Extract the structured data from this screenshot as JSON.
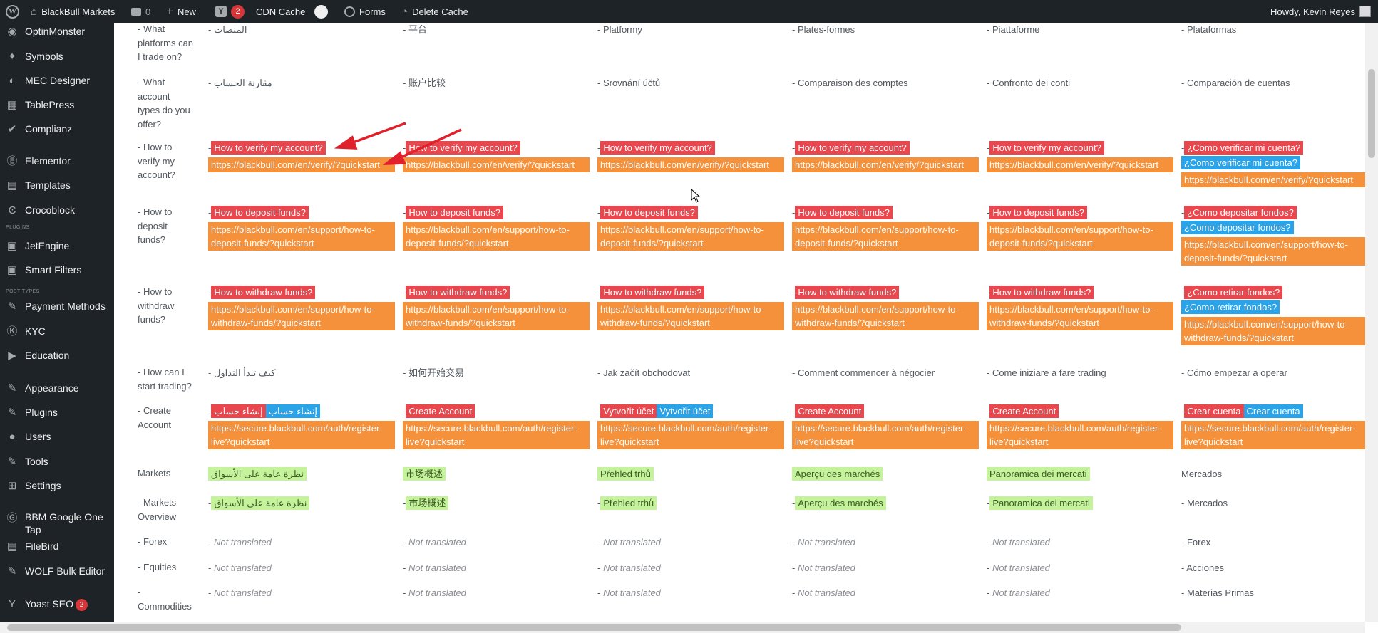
{
  "colors": {
    "admin_bar": "#1d2327",
    "sidebar": "#1d2327",
    "lang_highlight": "#e8474e",
    "url_highlight": "#f5913b",
    "alt_highlight": "#2ba3e8",
    "menu_highlight": "#c5f39b",
    "arrow": "#e0202b",
    "badge": "#d63638"
  },
  "adminbar": {
    "wp_logo_icon": "wordpress-icon",
    "site_name": "BlackBull Markets",
    "comments_count": "0",
    "new_label": "New",
    "yoast_count": "2",
    "cdn_cache": "CDN Cache",
    "forms_label": "Forms",
    "delete_cache": "Delete Cache",
    "howdy": "Howdy, Kevin Reyes"
  },
  "sidebar": {
    "section_plugins": "PLUGINS",
    "section_post_types": "POST TYPES",
    "items": [
      {
        "label": "OptinMonster",
        "icon": "optinmonster-icon"
      },
      {
        "label": "Symbols",
        "icon": "symbols-icon"
      },
      {
        "label": "MEC Designer",
        "icon": "mec-designer-icon"
      },
      {
        "label": "TablePress",
        "icon": "tablepress-icon"
      },
      {
        "label": "Complianz",
        "icon": "complianz-icon"
      },
      {
        "label": "Elementor",
        "icon": "elementor-icon"
      },
      {
        "label": "Templates",
        "icon": "templates-icon"
      },
      {
        "label": "Crocoblock",
        "icon": "crocoblock-icon"
      },
      {
        "label": "JetEngine",
        "icon": "jetengine-icon"
      },
      {
        "label": "Smart Filters",
        "icon": "smart-filters-icon"
      },
      {
        "label": "Payment Methods",
        "icon": "payment-methods-icon"
      },
      {
        "label": "KYC",
        "icon": "kyc-icon"
      },
      {
        "label": "Education",
        "icon": "education-icon"
      },
      {
        "label": "Appearance",
        "icon": "appearance-icon"
      },
      {
        "label": "Plugins",
        "icon": "plugins-icon"
      },
      {
        "label": "Users",
        "icon": "users-icon"
      },
      {
        "label": "Tools",
        "icon": "tools-icon"
      },
      {
        "label": "Settings",
        "icon": "settings-icon"
      },
      {
        "label": "BBM Google One Tap",
        "icon": "google-one-tap-icon"
      },
      {
        "label": "FileBird",
        "icon": "filebird-icon"
      },
      {
        "label": "WOLF Bulk Editor",
        "icon": "wolf-bulk-editor-icon"
      },
      {
        "label": "Yoast SEO",
        "icon": "yoast-icon",
        "badge": "2"
      }
    ]
  },
  "rows": [
    {
      "label": "- What platforms can I trade on?",
      "cells": [
        {
          "text": "- المنصات"
        },
        {
          "text": "- 平台"
        },
        {
          "text": "- Platformy"
        },
        {
          "text": "- Plates-formes"
        },
        {
          "text": "- Piattaforme"
        },
        {
          "text": "- Plataformas"
        }
      ]
    },
    {
      "label": "- What account types do you offer?",
      "cells": [
        {
          "text": "- مقارنة الحساب"
        },
        {
          "text": "- 账户比较"
        },
        {
          "text": "- Srovnání účtů"
        },
        {
          "text": "- Comparaison des comptes"
        },
        {
          "text": "- Confronto dei conti"
        },
        {
          "text": "- Comparación de cuentas"
        }
      ]
    },
    {
      "label": "- How to verify my account?",
      "cells": [
        {
          "prefix": "-",
          "red": "How to verify my account?",
          "url": "https://blackbull.com/en/verify/?quickstart"
        },
        {
          "prefix": "-",
          "red": "How to verify my account?",
          "url": "https://blackbull.com/en/verify/?quickstart"
        },
        {
          "prefix": "-",
          "red": "How to verify my account?",
          "url": "https://blackbull.com/en/verify/?quickstart"
        },
        {
          "prefix": "-",
          "red": "How to verify my account?",
          "url": "https://blackbull.com/en/verify/?quickstart"
        },
        {
          "prefix": "-",
          "red": "How to verify my account?",
          "url": "https://blackbull.com/en/verify/?quickstart"
        },
        {
          "prefix": "-",
          "red": "¿Como verificar mi cuenta?",
          "blue": "¿Como verificar mi cuenta?",
          "blue_newline": true,
          "url": "https://blackbull.com/en/verify/?quickstart"
        }
      ]
    },
    {
      "label": "- How to deposit funds?",
      "cells": [
        {
          "prefix": "-",
          "red": "How to deposit funds?",
          "url": "https://blackbull.com/en/support/how-to-deposit-funds/?quickstart"
        },
        {
          "prefix": "-",
          "red": "How to deposit funds?",
          "url": "https://blackbull.com/en/support/how-to-deposit-funds/?quickstart"
        },
        {
          "prefix": "-",
          "red": "How to deposit funds?",
          "url": "https://blackbull.com/en/support/how-to-deposit-funds/?quickstart"
        },
        {
          "prefix": "-",
          "red": "How to deposit funds?",
          "url": "https://blackbull.com/en/support/how-to-deposit-funds/?quickstart"
        },
        {
          "prefix": "-",
          "red": "How to deposit funds?",
          "url": "https://blackbull.com/en/support/how-to-deposit-funds/?quickstart"
        },
        {
          "prefix": "-",
          "red": "¿Como depositar fondos?",
          "blue": "¿Como depositar fondos?",
          "blue_newline": true,
          "url": "https://blackbull.com/en/support/how-to-deposit-funds/?quickstart"
        }
      ]
    },
    {
      "label": "- How to withdraw funds?",
      "cells": [
        {
          "prefix": "-",
          "red": "How to withdraw funds?",
          "url": "https://blackbull.com/en/support/how-to-withdraw-funds/?quickstart"
        },
        {
          "prefix": "-",
          "red": "How to withdraw funds?",
          "url": "https://blackbull.com/en/support/how-to-withdraw-funds/?quickstart"
        },
        {
          "prefix": "-",
          "red": "How to withdraw funds?",
          "url": "https://blackbull.com/en/support/how-to-withdraw-funds/?quickstart"
        },
        {
          "prefix": "-",
          "red": "How to withdraw funds?",
          "url": "https://blackbull.com/en/support/how-to-withdraw-funds/?quickstart"
        },
        {
          "prefix": "-",
          "red": "How to withdraw funds?",
          "url": "https://blackbull.com/en/support/how-to-withdraw-funds/?quickstart"
        },
        {
          "prefix": "-",
          "red": "¿Como retirar fondos?",
          "blue": "¿Como retirar fondos?",
          "blue_newline": true,
          "url": "https://blackbull.com/en/support/how-to-withdraw-funds/?quickstart"
        }
      ]
    },
    {
      "label": "- How can I start trading?",
      "cells": [
        {
          "text": "- كيف تبدأ التداول"
        },
        {
          "text": "- 如何开始交易"
        },
        {
          "text": "- Jak začít obchodovat"
        },
        {
          "text": "- Comment commencer à négocier"
        },
        {
          "text": "- Come iniziare a fare trading"
        },
        {
          "text": "- Cómo empezar a operar"
        }
      ]
    },
    {
      "label": "- Create Account",
      "cells": [
        {
          "prefix": "-",
          "red": "إنشاء حساب",
          "blue": "إنشاء حساب",
          "url": "https://secure.blackbull.com/auth/register-live?quickstart"
        },
        {
          "prefix": "-",
          "red": "Create Account",
          "url": "https://secure.blackbull.com/auth/register-live?quickstart"
        },
        {
          "prefix": "-",
          "red": "Vytvořit účet",
          "blue": "Vytvořit účet",
          "url": "https://secure.blackbull.com/auth/register-live?quickstart"
        },
        {
          "prefix": "-",
          "red": "Create Account",
          "url": "https://secure.blackbull.com/auth/register-live?quickstart"
        },
        {
          "prefix": "-",
          "red": "Create Account",
          "url": "https://secure.blackbull.com/auth/register-live?quickstart"
        },
        {
          "prefix": "-",
          "red": "Crear cuenta",
          "blue": "Crear cuenta",
          "url": "https://secure.blackbull.com/auth/register-live?quickstart"
        }
      ]
    },
    {
      "label": "Markets",
      "cells": [
        {
          "green": "نظرة عامة على الأسواق"
        },
        {
          "green": "市场概述"
        },
        {
          "green": "Přehled trhů"
        },
        {
          "green": "Aperçu des marchés"
        },
        {
          "green": "Panoramica dei mercati"
        },
        {
          "text": "Mercados"
        }
      ]
    },
    {
      "label": "- Markets Overview",
      "cells": [
        {
          "prefix": "-",
          "green": "نظرة عامة على الأسواق"
        },
        {
          "prefix": "-",
          "green": "市场概述"
        },
        {
          "prefix": "-",
          "green": "Přehled trhů"
        },
        {
          "prefix": "-",
          "green": "Aperçu des marchés"
        },
        {
          "prefix": "-",
          "green": "Panoramica dei mercati"
        },
        {
          "text": "- Mercados"
        }
      ]
    },
    {
      "label": "- Forex",
      "cells": [
        {
          "prefix": "-",
          "nt": "Not translated"
        },
        {
          "prefix": "-",
          "nt": "Not translated"
        },
        {
          "prefix": "-",
          "nt": "Not translated"
        },
        {
          "prefix": "-",
          "nt": "Not translated"
        },
        {
          "prefix": "-",
          "nt": "Not translated"
        },
        {
          "text": "- Forex"
        }
      ]
    },
    {
      "label": "- Equities",
      "cells": [
        {
          "prefix": "-",
          "nt": "Not translated"
        },
        {
          "prefix": "-",
          "nt": "Not translated"
        },
        {
          "prefix": "-",
          "nt": "Not translated"
        },
        {
          "prefix": "-",
          "nt": "Not translated"
        },
        {
          "prefix": "-",
          "nt": "Not translated"
        },
        {
          "text": "- Acciones"
        }
      ]
    },
    {
      "label": "- Commodities",
      "cells": [
        {
          "prefix": "-",
          "nt": "Not translated"
        },
        {
          "prefix": "-",
          "nt": "Not translated"
        },
        {
          "prefix": "-",
          "nt": "Not translated"
        },
        {
          "prefix": "-",
          "nt": "Not translated"
        },
        {
          "prefix": "-",
          "nt": "Not translated"
        },
        {
          "text": "- Materias Primas"
        }
      ]
    }
  ]
}
